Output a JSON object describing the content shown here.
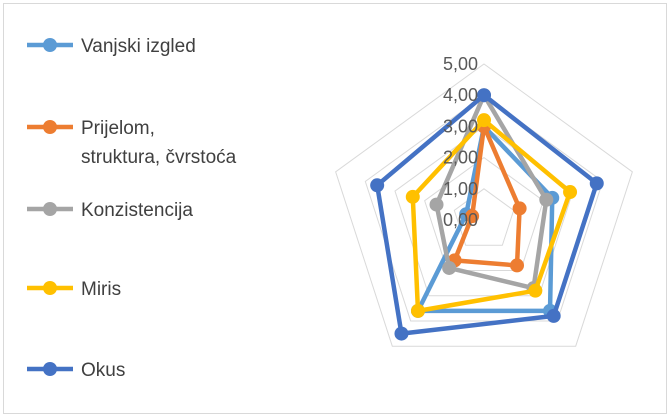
{
  "chart_data": {
    "type": "radar",
    "title": "",
    "axes_count": 5,
    "r_range": [
      0,
      5
    ],
    "ticks": [
      "0,00",
      "1,00",
      "2,00",
      "3,00",
      "4,00",
      "5,00"
    ],
    "grid": true,
    "legend_position": "left",
    "series": [
      {
        "name": "Vanjski izgled",
        "legend_lines": [
          "Vanjski izgled"
        ],
        "color": "#5B9BD5",
        "values": [
          3.0,
          2.3,
          3.6,
          3.6,
          0.6
        ]
      },
      {
        "name": "Prijelom, struktura, čvrstoća",
        "legend_lines": [
          "Prijelom,",
          "struktura, čvrstoća"
        ],
        "color": "#ED7D31",
        "values": [
          3.0,
          1.2,
          1.8,
          1.6,
          0.4
        ]
      },
      {
        "name": "Konzistencija",
        "legend_lines": [
          "Konzistencija"
        ],
        "color": "#A5A5A5",
        "values": [
          4.0,
          2.1,
          2.7,
          1.9,
          1.6
        ]
      },
      {
        "name": "Miris",
        "legend_lines": [
          "Miris"
        ],
        "color": "#FFC000",
        "values": [
          3.2,
          2.9,
          2.8,
          3.6,
          2.4
        ]
      },
      {
        "name": "Okus",
        "legend_lines": [
          "Okus"
        ],
        "color": "#4472C4",
        "values": [
          4.0,
          3.8,
          3.8,
          4.5,
          3.6
        ]
      }
    ]
  }
}
